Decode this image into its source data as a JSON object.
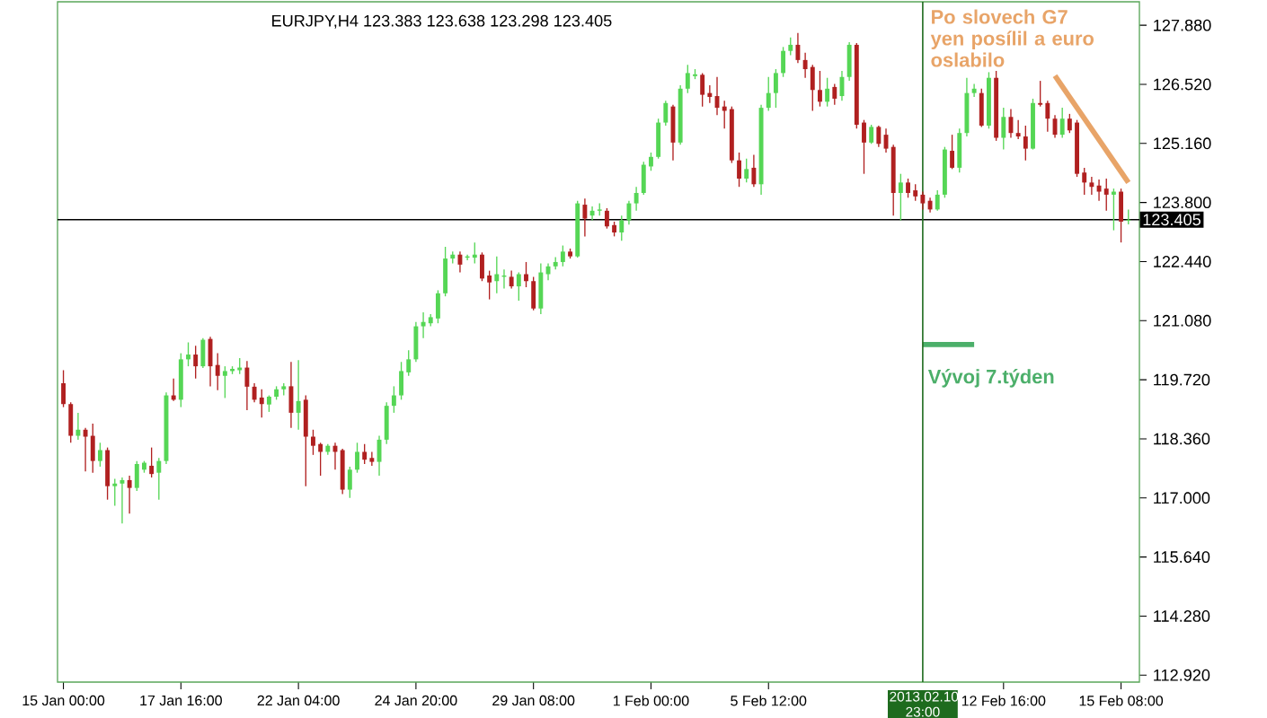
{
  "chart_data": {
    "type": "candlestick",
    "title": "EURJPY,H4  123.383 123.638 123.298 123.405",
    "categories": [
      "15 Jan 00:00",
      null,
      null,
      null,
      null,
      null,
      null,
      null,
      null,
      null,
      null,
      null,
      null,
      null,
      null,
      null,
      "17 Jan 16:00",
      null,
      null,
      null,
      null,
      null,
      null,
      null,
      null,
      null,
      null,
      null,
      null,
      null,
      null,
      null,
      "22 Jan 04:00",
      null,
      null,
      null,
      null,
      null,
      null,
      null,
      null,
      null,
      null,
      null,
      null,
      null,
      null,
      null,
      "24 Jan 20:00",
      null,
      null,
      null,
      null,
      null,
      null,
      null,
      null,
      null,
      null,
      null,
      null,
      null,
      null,
      null,
      "29 Jan 08:00",
      null,
      null,
      null,
      null,
      null,
      null,
      null,
      null,
      null,
      null,
      null,
      null,
      null,
      null,
      null,
      "1 Feb 00:00",
      null,
      null,
      null,
      null,
      null,
      null,
      null,
      null,
      null,
      null,
      null,
      null,
      null,
      null,
      null,
      "5 Feb 12:00",
      null,
      null,
      null,
      null,
      null,
      null,
      null,
      null,
      null,
      null,
      null,
      null,
      null,
      null,
      null,
      null,
      null,
      null,
      null,
      null,
      "2013.02.10 23:00",
      null,
      null,
      null,
      null,
      null,
      null,
      null,
      null,
      null,
      null,
      "12 Feb 16:00",
      null,
      null,
      null,
      null,
      null,
      null,
      null,
      null,
      null,
      null,
      null,
      null,
      null,
      null,
      null,
      "15 Feb 08:00",
      null
    ],
    "ohlc": [
      [
        119.64,
        119.94,
        119.09,
        119.16
      ],
      [
        119.16,
        119.2,
        118.27,
        118.43
      ],
      [
        118.43,
        118.96,
        118.34,
        118.57
      ],
      [
        118.57,
        118.61,
        117.61,
        118.41
      ],
      [
        118.43,
        118.71,
        117.58,
        117.85
      ],
      [
        117.85,
        118.27,
        117.72,
        118.1
      ],
      [
        118.1,
        118.16,
        116.96,
        117.27
      ],
      [
        117.27,
        117.44,
        116.82,
        117.33
      ],
      [
        117.33,
        117.47,
        116.41,
        117.41
      ],
      [
        117.41,
        117.51,
        116.64,
        117.23
      ],
      [
        117.23,
        117.85,
        117.16,
        117.78
      ],
      [
        117.65,
        117.85,
        117.58,
        117.81
      ],
      [
        117.74,
        118.16,
        117.47,
        117.55
      ],
      [
        117.58,
        117.92,
        116.96,
        117.85
      ],
      [
        117.85,
        119.43,
        117.78,
        119.36
      ],
      [
        119.36,
        119.75,
        119.23,
        119.26
      ],
      [
        119.26,
        120.33,
        119.09,
        120.19
      ],
      [
        120.19,
        120.58,
        120.03,
        120.3
      ],
      [
        120.3,
        120.5,
        119.75,
        120.03
      ],
      [
        120.03,
        120.68,
        119.99,
        120.64
      ],
      [
        120.66,
        120.71,
        119.57,
        120.03
      ],
      [
        120.06,
        120.33,
        119.48,
        119.81
      ],
      [
        119.81,
        120.03,
        119.3,
        119.92
      ],
      [
        119.92,
        120.03,
        119.85,
        119.97
      ],
      [
        119.94,
        120.22,
        119.85,
        120.0
      ],
      [
        120.0,
        120.15,
        119.02,
        119.56
      ],
      [
        119.56,
        119.64,
        119.2,
        119.26
      ],
      [
        119.31,
        119.5,
        118.85,
        119.16
      ],
      [
        119.15,
        119.36,
        118.98,
        119.33
      ],
      [
        119.33,
        119.57,
        119.26,
        119.5
      ],
      [
        119.5,
        119.64,
        119.36,
        119.57
      ],
      [
        119.57,
        120.13,
        118.61,
        118.96
      ],
      [
        118.96,
        120.17,
        118.57,
        119.23
      ],
      [
        119.26,
        119.36,
        117.27,
        118.41
      ],
      [
        118.41,
        118.57,
        117.99,
        118.2
      ],
      [
        118.24,
        118.27,
        117.51,
        118.06
      ],
      [
        118.06,
        118.24,
        117.99,
        118.2
      ],
      [
        118.2,
        118.27,
        117.65,
        118.06
      ],
      [
        118.1,
        118.13,
        117.09,
        117.19
      ],
      [
        117.19,
        117.72,
        117.0,
        117.65
      ],
      [
        117.65,
        118.27,
        117.58,
        118.06
      ],
      [
        118.06,
        118.24,
        117.78,
        117.88
      ],
      [
        117.92,
        118.06,
        117.74,
        117.83
      ],
      [
        117.83,
        118.43,
        117.51,
        118.34
      ],
      [
        118.34,
        119.2,
        118.24,
        119.12
      ],
      [
        119.12,
        119.57,
        118.96,
        119.36
      ],
      [
        119.36,
        120.13,
        119.26,
        119.92
      ],
      [
        119.89,
        120.4,
        119.81,
        120.19
      ],
      [
        120.19,
        121.05,
        120.13,
        120.95
      ],
      [
        120.95,
        121.27,
        120.68,
        121.05
      ],
      [
        121.02,
        121.23,
        120.95,
        121.16
      ],
      [
        121.13,
        121.78,
        121.02,
        121.71
      ],
      [
        121.71,
        122.78,
        121.64,
        122.51
      ],
      [
        122.51,
        122.67,
        122.4,
        122.6
      ],
      [
        122.6,
        122.67,
        122.19,
        122.37
      ],
      [
        122.53,
        122.6,
        122.47,
        122.56
      ],
      [
        122.53,
        122.88,
        122.4,
        122.6
      ],
      [
        122.6,
        122.65,
        121.99,
        122.05
      ],
      [
        122.12,
        122.23,
        121.57,
        121.96
      ],
      [
        121.99,
        122.56,
        121.71,
        122.15
      ],
      [
        122.09,
        122.26,
        121.82,
        122.12
      ],
      [
        122.09,
        122.23,
        121.82,
        121.87
      ],
      [
        121.87,
        122.19,
        121.54,
        122.15
      ],
      [
        122.15,
        122.43,
        121.85,
        121.99
      ],
      [
        121.99,
        122.09,
        121.32,
        121.36
      ],
      [
        121.36,
        122.4,
        121.23,
        122.19
      ],
      [
        122.15,
        122.4,
        122.01,
        122.33
      ],
      [
        122.33,
        122.54,
        122.26,
        122.43
      ],
      [
        122.43,
        122.81,
        122.33,
        122.67
      ],
      [
        122.67,
        122.74,
        122.51,
        122.56
      ],
      [
        122.56,
        123.84,
        122.53,
        123.78
      ],
      [
        123.75,
        123.89,
        123.02,
        123.43
      ],
      [
        123.5,
        123.71,
        123.39,
        123.61
      ],
      [
        123.61,
        123.78,
        123.5,
        123.64
      ],
      [
        123.61,
        123.67,
        123.2,
        123.25
      ],
      [
        123.28,
        123.36,
        123.02,
        123.11
      ],
      [
        123.11,
        123.5,
        122.92,
        123.39
      ],
      [
        123.39,
        123.84,
        123.29,
        123.78
      ],
      [
        123.78,
        124.16,
        123.61,
        124.02
      ],
      [
        124.02,
        124.74,
        123.98,
        124.67
      ],
      [
        124.63,
        124.95,
        124.53,
        124.85
      ],
      [
        124.85,
        125.73,
        124.81,
        125.64
      ],
      [
        125.64,
        126.14,
        125.57,
        126.09
      ],
      [
        126.01,
        126.05,
        124.77,
        125.18
      ],
      [
        125.18,
        126.5,
        125.13,
        126.42
      ],
      [
        126.42,
        126.97,
        126.32,
        126.78
      ],
      [
        126.71,
        126.87,
        126.64,
        126.75
      ],
      [
        126.74,
        126.78,
        126.01,
        126.28
      ],
      [
        126.32,
        126.5,
        126.09,
        126.23
      ],
      [
        126.25,
        126.69,
        125.81,
        125.98
      ],
      [
        126.01,
        126.14,
        125.5,
        125.91
      ],
      [
        125.95,
        126.01,
        124.71,
        124.77
      ],
      [
        124.77,
        124.95,
        124.16,
        124.35
      ],
      [
        124.35,
        124.81,
        124.26,
        124.57
      ],
      [
        124.6,
        124.9,
        124.16,
        124.22
      ],
      [
        124.22,
        126.05,
        123.98,
        125.98
      ],
      [
        125.98,
        126.69,
        125.91,
        126.32
      ],
      [
        126.32,
        126.87,
        125.98,
        126.78
      ],
      [
        126.78,
        127.38,
        126.69,
        127.29
      ],
      [
        127.29,
        127.6,
        127.19,
        127.43
      ],
      [
        127.43,
        127.7,
        127.01,
        127.08
      ],
      [
        127.08,
        127.25,
        126.67,
        126.87
      ],
      [
        126.92,
        126.97,
        125.91,
        126.39
      ],
      [
        126.39,
        126.83,
        126.01,
        126.12
      ],
      [
        126.12,
        126.67,
        126.01,
        126.42
      ],
      [
        126.46,
        126.53,
        126.05,
        126.19
      ],
      [
        126.25,
        126.83,
        126.14,
        126.69
      ],
      [
        126.69,
        127.49,
        126.6,
        127.43
      ],
      [
        127.43,
        127.47,
        125.5,
        125.59
      ],
      [
        125.64,
        125.7,
        124.46,
        125.18
      ],
      [
        125.18,
        125.59,
        125.15,
        125.54
      ],
      [
        125.54,
        125.57,
        125.08,
        125.15
      ],
      [
        125.36,
        125.5,
        124.95,
        125.04
      ],
      [
        125.08,
        125.13,
        123.5,
        124.02
      ],
      [
        124.02,
        124.46,
        123.39,
        124.26
      ],
      [
        124.26,
        124.35,
        123.91,
        124.02
      ],
      [
        124.08,
        124.22,
        123.84,
        123.94
      ],
      [
        123.98,
        124.05,
        123.64,
        123.78
      ],
      [
        123.84,
        123.91,
        123.57,
        123.64
      ],
      [
        123.64,
        124.08,
        123.61,
        123.98
      ],
      [
        123.98,
        125.08,
        123.91,
        125.02
      ],
      [
        124.99,
        125.36,
        124.57,
        124.6
      ],
      [
        124.6,
        125.5,
        124.49,
        125.4
      ],
      [
        125.4,
        126.67,
        125.32,
        126.32
      ],
      [
        126.32,
        126.53,
        126.23,
        126.42
      ],
      [
        126.32,
        126.42,
        125.54,
        125.57
      ],
      [
        125.57,
        126.8,
        125.5,
        126.67
      ],
      [
        126.67,
        126.83,
        125.22,
        125.29
      ],
      [
        125.29,
        125.98,
        125.02,
        125.77
      ],
      [
        125.77,
        125.95,
        125.29,
        125.4
      ],
      [
        125.4,
        125.7,
        125.26,
        125.32
      ],
      [
        125.32,
        125.57,
        124.77,
        125.04
      ],
      [
        125.04,
        126.19,
        125.02,
        126.09
      ],
      [
        126.09,
        126.6,
        126.01,
        126.05
      ],
      [
        126.09,
        126.14,
        125.43,
        125.73
      ],
      [
        125.73,
        125.81,
        125.29,
        125.36
      ],
      [
        125.36,
        125.98,
        125.29,
        125.73
      ],
      [
        125.73,
        125.84,
        125.4,
        125.46
      ],
      [
        125.64,
        125.7,
        124.39,
        124.46
      ],
      [
        124.49,
        124.6,
        123.98,
        124.26
      ],
      [
        124.26,
        124.39,
        123.98,
        124.16
      ],
      [
        124.19,
        124.33,
        123.84,
        124.05
      ],
      [
        124.12,
        124.35,
        123.61,
        123.98
      ],
      [
        123.98,
        124.12,
        123.16,
        124.05
      ],
      [
        124.05,
        124.12,
        122.88,
        123.36
      ],
      [
        123.383,
        123.638,
        123.298,
        123.405
      ]
    ],
    "series": [
      {
        "type": "line",
        "color": "#e8a468",
        "values": [
          null,
          null,
          null,
          null,
          null,
          null,
          null,
          null,
          null,
          null,
          null,
          null,
          null,
          null,
          null,
          null,
          null,
          null,
          null,
          null,
          null,
          null,
          null,
          null,
          null,
          null,
          null,
          null,
          null,
          null,
          null,
          null,
          null,
          null,
          null,
          null,
          null,
          null,
          null,
          null,
          null,
          null,
          null,
          null,
          null,
          null,
          null,
          null,
          null,
          null,
          null,
          null,
          null,
          null,
          null,
          null,
          null,
          null,
          null,
          null,
          null,
          null,
          null,
          null,
          null,
          null,
          null,
          null,
          null,
          null,
          null,
          null,
          null,
          null,
          null,
          null,
          null,
          null,
          null,
          null,
          null,
          null,
          null,
          null,
          null,
          null,
          null,
          null,
          null,
          null,
          null,
          null,
          null,
          null,
          null,
          null,
          null,
          null,
          null,
          null,
          null,
          null,
          null,
          null,
          null,
          null,
          null,
          null,
          null,
          null,
          null,
          null,
          null,
          null,
          null,
          null,
          null,
          null,
          null,
          null,
          null,
          null,
          null,
          null,
          null,
          null,
          null,
          null,
          null,
          null,
          null,
          null,
          null,
          null,
          null,
          126.72,
          null,
          null,
          null,
          null,
          null,
          null,
          null,
          null,
          null,
          124.26
        ]
      },
      {
        "type": "line",
        "color": "#4caf6a",
        "values": [
          null,
          null,
          null,
          null,
          null,
          null,
          null,
          null,
          null,
          null,
          null,
          null,
          null,
          null,
          null,
          null,
          null,
          null,
          null,
          null,
          null,
          null,
          null,
          null,
          null,
          null,
          null,
          null,
          null,
          null,
          null,
          null,
          null,
          null,
          null,
          null,
          null,
          null,
          null,
          null,
          null,
          null,
          null,
          null,
          null,
          null,
          null,
          null,
          null,
          null,
          null,
          null,
          null,
          null,
          null,
          null,
          null,
          null,
          null,
          null,
          null,
          null,
          null,
          null,
          null,
          null,
          null,
          null,
          null,
          null,
          null,
          null,
          null,
          null,
          null,
          null,
          null,
          null,
          null,
          null,
          null,
          null,
          null,
          null,
          null,
          null,
          null,
          null,
          null,
          null,
          null,
          null,
          null,
          null,
          null,
          null,
          null,
          null,
          null,
          null,
          null,
          null,
          null,
          null,
          null,
          null,
          null,
          null,
          null,
          null,
          null,
          null,
          null,
          null,
          null,
          null,
          null,
          120.53,
          null,
          null,
          null,
          null,
          null,
          null,
          120.53,
          null,
          null,
          null,
          null,
          null,
          null,
          null,
          null,
          null,
          null,
          null,
          null,
          null,
          null,
          null,
          null,
          null,
          null,
          null,
          null,
          null
        ]
      }
    ],
    "annotations": [
      "Po slovech G7 yen posílil a euro oslabilo",
      "Vývoj 7.týden"
    ],
    "ylim": [
      112.76,
      128.42
    ],
    "yticks": [
      {
        "value": 127.88,
        "label": "127.880"
      },
      {
        "value": 126.52,
        "label": "126.520"
      },
      {
        "value": 125.16,
        "label": "125.160"
      },
      {
        "value": 123.8,
        "label": "123.800"
      },
      {
        "value": 122.44,
        "label": "122.440"
      },
      {
        "value": 121.08,
        "label": "121.080"
      },
      {
        "value": 119.72,
        "label": "119.720"
      },
      {
        "value": 118.36,
        "label": "118.360"
      },
      {
        "value": 117.0,
        "label": "117.000"
      },
      {
        "value": 115.64,
        "label": "115.640"
      },
      {
        "value": 114.28,
        "label": "114.280"
      },
      {
        "value": 112.92,
        "label": "112.920"
      }
    ],
    "ref_lines": [
      {
        "axis": "y",
        "value": 123.405,
        "label": "123.405",
        "color": "#000000"
      },
      {
        "axis": "x",
        "value": "2013.02.10 23:00",
        "color": "#1e6b1e"
      }
    ]
  }
}
